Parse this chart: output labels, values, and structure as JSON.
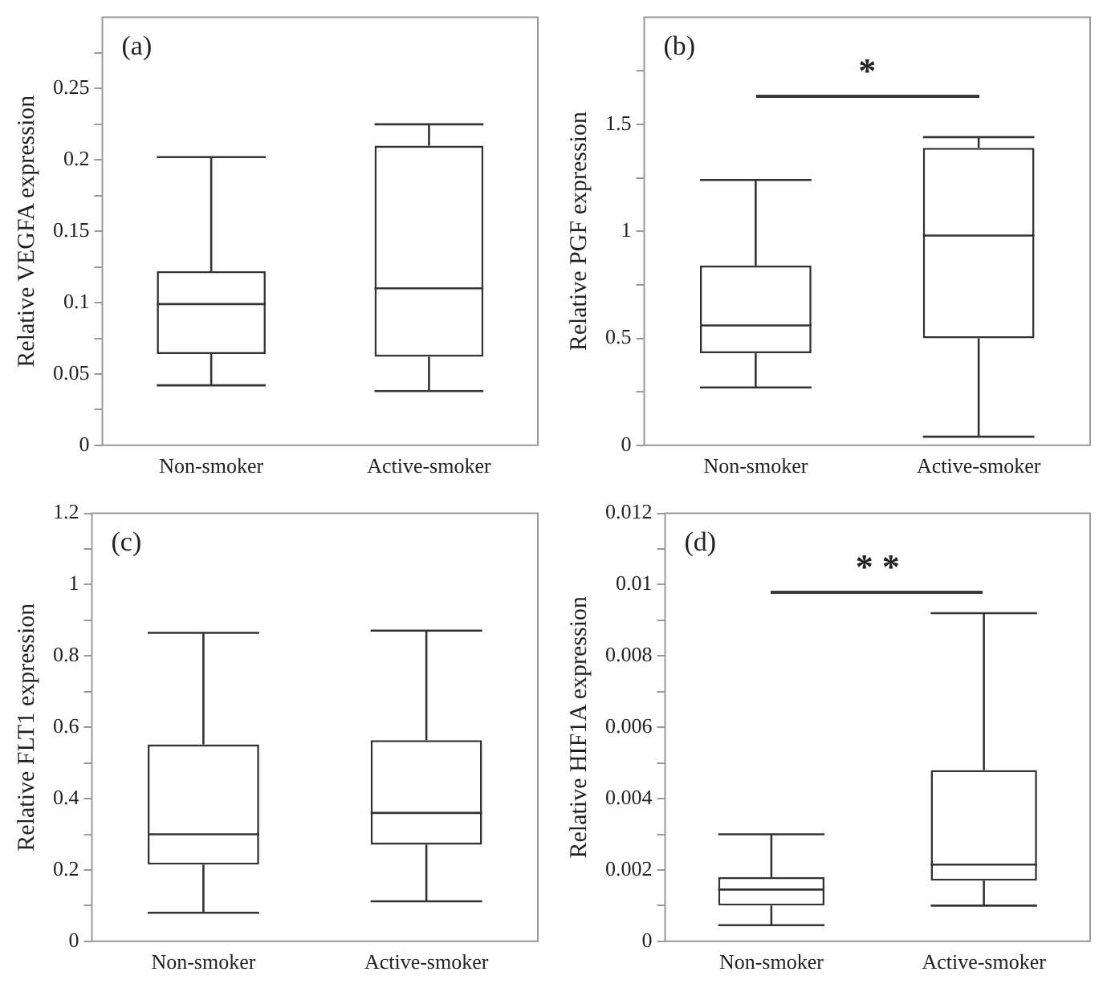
{
  "chart_data": [
    {
      "type": "box",
      "title": "(a)",
      "ylabel": "Relative VEGFA expression",
      "categories": [
        "Non-smoker",
        "Active-smoker"
      ],
      "boxes": [
        {
          "low": 0.042,
          "q1": 0.064,
          "median": 0.099,
          "q3": 0.122,
          "high": 0.202
        },
        {
          "low": 0.038,
          "q1": 0.062,
          "median": 0.11,
          "q3": 0.21,
          "high": 0.225
        }
      ],
      "ylim": [
        0,
        0.3
      ],
      "yticks": [
        0,
        {
          "value": 0.025,
          "label": null
        },
        0.05,
        {
          "value": 0.075,
          "label": null
        },
        0.1,
        {
          "value": 0.125,
          "label": null
        },
        0.15,
        {
          "value": 0.175,
          "label": null
        },
        0.2,
        {
          "value": 0.225,
          "label": null
        },
        0.25,
        {
          "value": 0.275,
          "label": null
        }
      ],
      "grid": false,
      "legend": false
    },
    {
      "type": "box",
      "title": "(b)",
      "ylabel": "Relative PGF expression",
      "categories": [
        "Non-smoker",
        "Active-smoker"
      ],
      "boxes": [
        {
          "low": 0.27,
          "q1": 0.43,
          "median": 0.56,
          "q3": 0.84,
          "high": 1.24
        },
        {
          "low": 0.04,
          "q1": 0.5,
          "median": 0.98,
          "q3": 1.39,
          "high": 1.44
        }
      ],
      "ylim": [
        0,
        2
      ],
      "yticks": [
        0,
        {
          "value": 0.25,
          "label": null
        },
        0.5,
        {
          "value": 0.75,
          "label": null
        },
        1,
        {
          "value": 1.25,
          "label": null
        },
        1.5,
        {
          "value": 1.75,
          "label": null
        }
      ],
      "grid": false,
      "legend": false,
      "annotations": [
        "*"
      ]
    },
    {
      "type": "box",
      "title": "(c)",
      "ylabel": "Relative FLT1 expression",
      "categories": [
        "Non-smoker",
        "Active-smoker"
      ],
      "boxes": [
        {
          "low": 0.08,
          "q1": 0.215,
          "median": 0.3,
          "q3": 0.552,
          "high": 0.865
        },
        {
          "low": 0.112,
          "q1": 0.271,
          "median": 0.36,
          "q3": 0.564,
          "high": 0.871
        }
      ],
      "ylim": [
        0,
        1.2
      ],
      "yticks": [
        0,
        {
          "value": 0.1,
          "label": null
        },
        0.2,
        {
          "value": 0.3,
          "label": null
        },
        0.4,
        {
          "value": 0.5,
          "label": null
        },
        0.6,
        {
          "value": 0.7,
          "label": null
        },
        0.8,
        {
          "value": 0.9,
          "label": null
        },
        1,
        {
          "value": 1.1,
          "label": null
        },
        1.2
      ],
      "grid": false,
      "legend": false
    },
    {
      "type": "box",
      "title": "(d)",
      "ylabel": "Relative HIF1A expression",
      "categories": [
        "Non-smoker",
        "Active-smoker"
      ],
      "boxes": [
        {
          "low": 0.00045,
          "q1": 0.001,
          "median": 0.00145,
          "q3": 0.0018,
          "high": 0.003
        },
        {
          "low": 0.001,
          "q1": 0.0017,
          "median": 0.00215,
          "q3": 0.0048,
          "high": 0.0092
        }
      ],
      "ylim": [
        0,
        0.012
      ],
      "yticks": [
        0,
        {
          "value": 0.001,
          "label": null
        },
        0.002,
        {
          "value": 0.003,
          "label": null
        },
        0.004,
        {
          "value": 0.005,
          "label": null
        },
        0.006,
        {
          "value": 0.007,
          "label": null
        },
        0.008,
        {
          "value": 0.009,
          "label": null
        },
        0.01,
        {
          "value": 0.011,
          "label": null
        },
        0.012
      ],
      "grid": false,
      "legend": false,
      "annotations": [
        "* *"
      ]
    }
  ]
}
